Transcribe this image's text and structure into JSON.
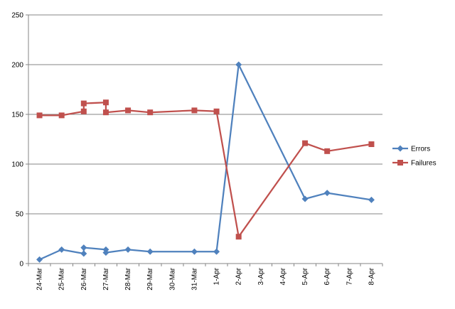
{
  "chart_data": {
    "type": "line",
    "title": "",
    "xlabel": "",
    "ylabel": "",
    "ylim": [
      0,
      250
    ],
    "yticks": [
      0,
      50,
      100,
      150,
      200,
      250
    ],
    "grid": "horizontal",
    "legend_position": "right",
    "categories": [
      "24-Mar",
      "25-Mar",
      "26-Mar",
      "27-Mar",
      "28-Mar",
      "29-Mar",
      "30-Mar",
      "31-Mar",
      "1-Apr",
      "2-Apr",
      "3-Apr",
      "4-Apr",
      "5-Apr",
      "6-Apr",
      "7-Apr",
      "8-Apr"
    ],
    "series": [
      {
        "name": "Errors",
        "color": "#4F81BD",
        "marker": "diamond",
        "points": [
          {
            "x": "24-Mar",
            "y": 4
          },
          {
            "x": "25-Mar",
            "y": 14
          },
          {
            "x": "26-Mar",
            "y": 10
          },
          {
            "x": "26-Mar",
            "y": 16
          },
          {
            "x": "27-Mar",
            "y": 14
          },
          {
            "x": "27-Mar",
            "y": 11
          },
          {
            "x": "28-Mar",
            "y": 14
          },
          {
            "x": "29-Mar",
            "y": 12
          },
          {
            "x": "31-Mar",
            "y": 12
          },
          {
            "x": "1-Apr",
            "y": 12
          },
          {
            "x": "2-Apr",
            "y": 200
          },
          {
            "x": "5-Apr",
            "y": 65
          },
          {
            "x": "6-Apr",
            "y": 71
          },
          {
            "x": "8-Apr",
            "y": 64
          }
        ]
      },
      {
        "name": "Failures",
        "color": "#C0504D",
        "marker": "square",
        "points": [
          {
            "x": "24-Mar",
            "y": 149
          },
          {
            "x": "25-Mar",
            "y": 149
          },
          {
            "x": "26-Mar",
            "y": 153
          },
          {
            "x": "26-Mar",
            "y": 161
          },
          {
            "x": "27-Mar",
            "y": 162
          },
          {
            "x": "27-Mar",
            "y": 152
          },
          {
            "x": "28-Mar",
            "y": 154
          },
          {
            "x": "29-Mar",
            "y": 152
          },
          {
            "x": "31-Mar",
            "y": 154
          },
          {
            "x": "1-Apr",
            "y": 153
          },
          {
            "x": "2-Apr",
            "y": 27
          },
          {
            "x": "5-Apr",
            "y": 121
          },
          {
            "x": "6-Apr",
            "y": 113
          },
          {
            "x": "8-Apr",
            "y": 120
          }
        ]
      }
    ]
  }
}
